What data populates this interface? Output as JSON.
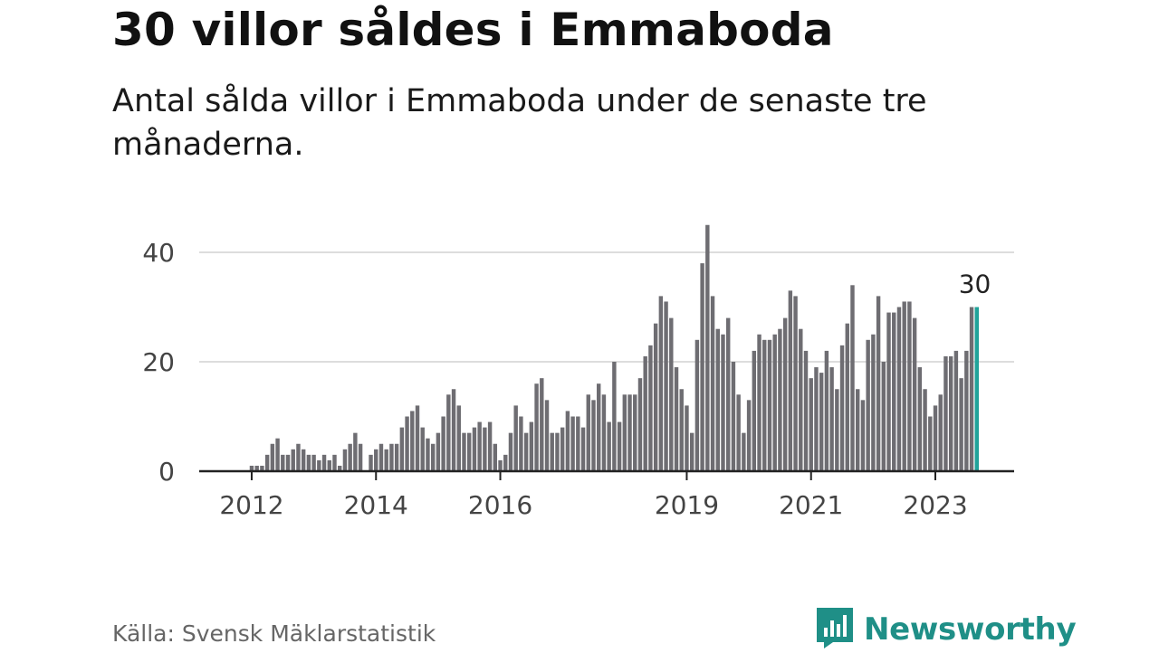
{
  "title": "30 villor såldes i Emmaboda",
  "subtitle": "Antal sålda villor i Emmaboda under de senaste tre månaderna.",
  "source": "Källa: Svensk Mäklarstatistik",
  "brand": {
    "name": "Newsworthy",
    "icon": "newsworthy-logo-icon",
    "color": "#1f8f87"
  },
  "chart_data": {
    "type": "bar",
    "title": "30 villor såldes i Emmaboda",
    "xlabel": "",
    "ylabel": "",
    "ylim": [
      0,
      45
    ],
    "yticks": [
      0,
      20,
      40
    ],
    "grid": true,
    "bar_color": "#6e6d72",
    "highlight_color": "#1fa39a",
    "highlight_label": "30",
    "xtick_labels": [
      "2012",
      "2014",
      "2016",
      "2019",
      "2021",
      "2023"
    ],
    "xtick_positions": [
      8,
      32,
      56,
      92,
      116,
      140
    ],
    "values": [
      0,
      0,
      0,
      0,
      0,
      0,
      0,
      0,
      1,
      1,
      1,
      3,
      5,
      6,
      3,
      3,
      4,
      5,
      4,
      3,
      3,
      2,
      3,
      2,
      3,
      1,
      4,
      5,
      7,
      5,
      0,
      3,
      4,
      5,
      4,
      5,
      5,
      8,
      10,
      11,
      12,
      8,
      6,
      5,
      7,
      10,
      14,
      15,
      12,
      7,
      7,
      8,
      9,
      8,
      9,
      5,
      2,
      3,
      7,
      12,
      10,
      7,
      9,
      16,
      17,
      13,
      7,
      7,
      8,
      11,
      10,
      10,
      8,
      14,
      13,
      16,
      14,
      9,
      20,
      9,
      14,
      14,
      14,
      17,
      21,
      23,
      27,
      32,
      31,
      28,
      19,
      15,
      12,
      7,
      24,
      38,
      45,
      32,
      26,
      25,
      28,
      20,
      14,
      7,
      13,
      22,
      25,
      24,
      24,
      25,
      26,
      28,
      33,
      32,
      26,
      22,
      17,
      19,
      18,
      22,
      19,
      15,
      23,
      27,
      34,
      15,
      13,
      24,
      25,
      32,
      20,
      29,
      29,
      30,
      31,
      31,
      28,
      19,
      15,
      10,
      12,
      14,
      21,
      21,
      22,
      17,
      22,
      30,
      30
    ]
  }
}
